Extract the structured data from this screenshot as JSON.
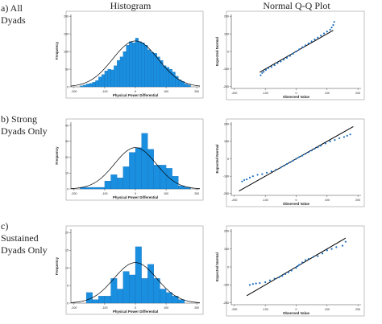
{
  "column_headers": {
    "histogram": "Histogram",
    "qq": "Normal Q-Q Plot"
  },
  "row_labels": [
    [
      "a) All",
      "Dyads"
    ],
    [
      "b) Strong",
      "Dyads Only"
    ],
    [
      "c)",
      "Sustained",
      "Dyads Only"
    ]
  ],
  "colors": {
    "bar": "#1a8fe0",
    "bar_edge": "#0a5fa8",
    "curve": "#000000",
    "qq_point": "#1e6fc0",
    "line": "#000000"
  },
  "chart_data": [
    {
      "type": "bar",
      "panel": "a-histogram",
      "xlabel": "Physical Power Differential",
      "ylabel": "Frequency",
      "xlim": [
        -210,
        210
      ],
      "ylim": [
        0,
        205
      ],
      "xticks": [
        -200,
        -100,
        0,
        100,
        200
      ],
      "yticks": [
        0,
        50,
        100,
        150,
        200
      ],
      "bin_width": 10,
      "bins_start": [
        -180,
        -170,
        -160,
        -150,
        -140,
        -130,
        -120,
        -110,
        -100,
        -90,
        -80,
        -70,
        -60,
        -50,
        -40,
        -30,
        -20,
        -10,
        0,
        10,
        20,
        30,
        40,
        50,
        60,
        70,
        80,
        90,
        100,
        110,
        120,
        130,
        140,
        150,
        160,
        170
      ],
      "values": [
        3,
        5,
        8,
        10,
        13,
        18,
        28,
        35,
        45,
        50,
        48,
        60,
        75,
        85,
        100,
        118,
        128,
        125,
        138,
        128,
        125,
        118,
        105,
        98,
        95,
        85,
        75,
        60,
        55,
        50,
        42,
        30,
        20,
        15,
        8,
        5
      ],
      "normal_curve": {
        "mean": 0,
        "sd": 74,
        "peak": 130
      }
    },
    {
      "type": "scatter",
      "panel": "a-qq",
      "xlabel": "Observed Value",
      "ylabel": "Expected Normal",
      "xlim": [
        -210,
        210
      ],
      "ylim": [
        -210,
        210
      ],
      "xticks": [
        -200,
        -100,
        0,
        100,
        200
      ],
      "yticks": [
        -200,
        -100,
        0,
        100,
        200
      ],
      "points": [
        [
          -115,
          -135
        ],
        [
          -110,
          -122
        ],
        [
          -105,
          -115
        ],
        [
          -98,
          -105
        ],
        [
          -90,
          -95
        ],
        [
          -80,
          -88
        ],
        [
          -70,
          -78
        ],
        [
          -60,
          -66
        ],
        [
          -50,
          -57
        ],
        [
          -40,
          -47
        ],
        [
          -30,
          -36
        ],
        [
          -20,
          -25
        ],
        [
          -10,
          -13
        ],
        [
          0,
          0
        ],
        [
          10,
          12
        ],
        [
          20,
          24
        ],
        [
          30,
          35
        ],
        [
          40,
          46
        ],
        [
          50,
          57
        ],
        [
          60,
          68
        ],
        [
          70,
          79
        ],
        [
          80,
          90
        ],
        [
          90,
          102
        ],
        [
          100,
          113
        ],
        [
          110,
          124
        ],
        [
          115,
          136
        ],
        [
          120,
          150
        ],
        [
          123,
          168
        ]
      ],
      "ref_line": [
        [
          -118,
          -118
        ],
        [
          120,
          120
        ]
      ]
    },
    {
      "type": "bar",
      "panel": "b-histogram",
      "xlabel": "Physical Power Differential",
      "ylabel": "Frequency",
      "xlim": [
        -210,
        210
      ],
      "ylim": [
        0,
        42
      ],
      "xticks": [
        -200,
        -100,
        0,
        100,
        200
      ],
      "yticks": [
        0,
        10,
        20,
        30,
        40
      ],
      "bin_width": 20,
      "bins_start": [
        -180,
        -160,
        -140,
        -120,
        -100,
        -80,
        -60,
        -40,
        -20,
        0,
        20,
        40,
        60,
        80,
        100,
        120,
        140,
        160
      ],
      "values": [
        1,
        1,
        1,
        1,
        5,
        9,
        7,
        14,
        23,
        26,
        35,
        25,
        15,
        15,
        13,
        8,
        2,
        1
      ],
      "normal_curve": {
        "mean": 0,
        "sd": 68,
        "peak": 26
      }
    },
    {
      "type": "scatter",
      "panel": "b-qq",
      "xlabel": "Observed Value",
      "ylabel": "Expected Normal",
      "xlim": [
        -210,
        210
      ],
      "ylim": [
        -210,
        210
      ],
      "xticks": [
        -200,
        -100,
        0,
        100,
        200
      ],
      "yticks": [
        -200,
        -100,
        0,
        100,
        200
      ],
      "points": [
        [
          -175,
          -130
        ],
        [
          -168,
          -122
        ],
        [
          -160,
          -118
        ],
        [
          -150,
          -108
        ],
        [
          -140,
          -100
        ],
        [
          -125,
          -92
        ],
        [
          -110,
          -88
        ],
        [
          -95,
          -80
        ],
        [
          -80,
          -72
        ],
        [
          -65,
          -62
        ],
        [
          -50,
          -50
        ],
        [
          -40,
          -40
        ],
        [
          -30,
          -30
        ],
        [
          -20,
          -20
        ],
        [
          -10,
          -10
        ],
        [
          0,
          0
        ],
        [
          10,
          10
        ],
        [
          20,
          18
        ],
        [
          30,
          28
        ],
        [
          40,
          38
        ],
        [
          50,
          48
        ],
        [
          60,
          58
        ],
        [
          70,
          66
        ],
        [
          80,
          75
        ],
        [
          95,
          88
        ],
        [
          110,
          100
        ],
        [
          125,
          108
        ],
        [
          140,
          118
        ],
        [
          155,
          125
        ],
        [
          165,
          132
        ],
        [
          175,
          140
        ]
      ],
      "ref_line": [
        [
          -185,
          -185
        ],
        [
          185,
          185
        ]
      ]
    },
    {
      "type": "bar",
      "panel": "c-histogram",
      "xlabel": "Physical Power Differential",
      "ylabel": "Frequency",
      "xlim": [
        -210,
        210
      ],
      "ylim": [
        0,
        21
      ],
      "xticks": [
        -200,
        -100,
        0,
        100,
        200
      ],
      "yticks": [
        0,
        5,
        10,
        15,
        20
      ],
      "bin_width": 20,
      "bins_start": [
        -160,
        -140,
        -120,
        -100,
        -80,
        -60,
        -40,
        -20,
        0,
        20,
        40,
        60,
        80,
        100,
        120,
        140
      ],
      "values": [
        3,
        1,
        2,
        2,
        7,
        4,
        9,
        8,
        16,
        7,
        11,
        7,
        4,
        3,
        2,
        1
      ],
      "normal_curve": {
        "mean": 0,
        "sd": 70,
        "peak": 11.5
      }
    },
    {
      "type": "scatter",
      "panel": "c-qq",
      "xlabel": "Observed Value",
      "ylabel": "Expected Normal",
      "xlim": [
        -210,
        210
      ],
      "ylim": [
        -210,
        210
      ],
      "xticks": [
        -200,
        -100,
        0,
        100,
        200
      ],
      "yticks": [
        -200,
        -100,
        0,
        100,
        200
      ],
      "points": [
        [
          -150,
          -100
        ],
        [
          -140,
          -95
        ],
        [
          -130,
          -92
        ],
        [
          -118,
          -90
        ],
        [
          -100,
          -85
        ],
        [
          -85,
          -75
        ],
        [
          -70,
          -65
        ],
        [
          -55,
          -58
        ],
        [
          -45,
          -50
        ],
        [
          -35,
          -40
        ],
        [
          -25,
          -30
        ],
        [
          -15,
          -20
        ],
        [
          0,
          -5
        ],
        [
          5,
          5
        ],
        [
          10,
          12
        ],
        [
          20,
          25
        ],
        [
          30,
          38
        ],
        [
          40,
          44
        ],
        [
          55,
          55
        ],
        [
          70,
          60
        ],
        [
          85,
          75
        ],
        [
          100,
          92
        ],
        [
          115,
          100
        ],
        [
          130,
          110
        ],
        [
          150,
          118
        ],
        [
          160,
          140
        ]
      ],
      "ref_line": [
        [
          -160,
          -160
        ],
        [
          160,
          160
        ]
      ]
    }
  ]
}
